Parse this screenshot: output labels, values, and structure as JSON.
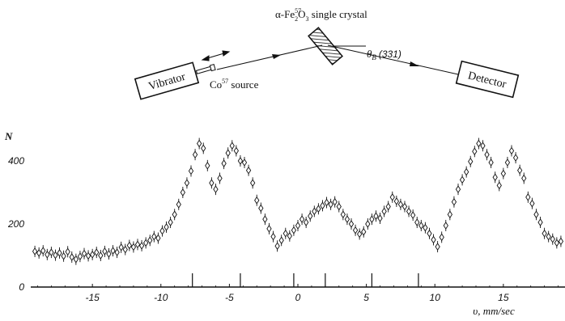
{
  "apparatus": {
    "crystal_label_prefix": "α-Fe",
    "crystal_label_sub": "2",
    "crystal_label_sup": "57",
    "crystal_label_mid": "O",
    "crystal_label_sub2": "3",
    "crystal_label_suffix": " single crystal",
    "bragg_symbol": "θ",
    "bragg_sub": "B",
    "bragg_reflection": "(331)",
    "vibrator_label": "Vibrator",
    "source_label_prefix": "Co",
    "source_label_sup": "57",
    "source_label_suffix": " source",
    "detector_label": "Detector"
  },
  "chart_data": {
    "type": "scatter",
    "marker": "open-diamond-with-error-bars",
    "xlabel": "υ, mm/sec",
    "ylabel": "N",
    "xlim": [
      -19.5,
      19.5
    ],
    "ylim": [
      0,
      500
    ],
    "xticks": [
      -15,
      -10,
      -5,
      0,
      5,
      10,
      15
    ],
    "yticks": [
      0,
      200,
      400
    ],
    "line_markers_x": [
      -7.7,
      -4.2,
      -0.3,
      2.0,
      5.4,
      8.8
    ],
    "points": [
      [
        -19.2,
        113
      ],
      [
        -18.9,
        108
      ],
      [
        -18.6,
        115
      ],
      [
        -18.3,
        103
      ],
      [
        -18.0,
        110
      ],
      [
        -17.7,
        101
      ],
      [
        -17.4,
        108
      ],
      [
        -17.1,
        98
      ],
      [
        -16.8,
        112
      ],
      [
        -16.5,
        95
      ],
      [
        -16.2,
        88
      ],
      [
        -15.9,
        97
      ],
      [
        -15.6,
        106
      ],
      [
        -15.3,
        99
      ],
      [
        -15.0,
        103
      ],
      [
        -14.7,
        110
      ],
      [
        -14.4,
        100
      ],
      [
        -14.1,
        113
      ],
      [
        -13.8,
        105
      ],
      [
        -13.5,
        115
      ],
      [
        -13.2,
        110
      ],
      [
        -12.9,
        126
      ],
      [
        -12.6,
        119
      ],
      [
        -12.3,
        132
      ],
      [
        -12.0,
        127
      ],
      [
        -11.7,
        135
      ],
      [
        -11.4,
        131
      ],
      [
        -11.1,
        140
      ],
      [
        -10.8,
        148
      ],
      [
        -10.5,
        160
      ],
      [
        -10.2,
        155
      ],
      [
        -9.9,
        178
      ],
      [
        -9.6,
        190
      ],
      [
        -9.3,
        205
      ],
      [
        -9.0,
        230
      ],
      [
        -8.7,
        262
      ],
      [
        -8.4,
        300
      ],
      [
        -8.1,
        330
      ],
      [
        -7.8,
        368
      ],
      [
        -7.5,
        420
      ],
      [
        -7.2,
        455
      ],
      [
        -6.9,
        440
      ],
      [
        -6.6,
        385
      ],
      [
        -6.3,
        330
      ],
      [
        -6.0,
        310
      ],
      [
        -5.7,
        345
      ],
      [
        -5.4,
        392
      ],
      [
        -5.1,
        425
      ],
      [
        -4.8,
        448
      ],
      [
        -4.5,
        432
      ],
      [
        -4.2,
        400
      ],
      [
        -3.9,
        395
      ],
      [
        -3.6,
        370
      ],
      [
        -3.3,
        330
      ],
      [
        -3.0,
        275
      ],
      [
        -2.7,
        250
      ],
      [
        -2.4,
        215
      ],
      [
        -2.1,
        185
      ],
      [
        -1.8,
        160
      ],
      [
        -1.5,
        130
      ],
      [
        -1.2,
        148
      ],
      [
        -0.9,
        170
      ],
      [
        -0.6,
        162
      ],
      [
        -0.3,
        180
      ],
      [
        0.0,
        195
      ],
      [
        0.3,
        215
      ],
      [
        0.6,
        205
      ],
      [
        0.9,
        225
      ],
      [
        1.2,
        240
      ],
      [
        1.5,
        248
      ],
      [
        1.8,
        258
      ],
      [
        2.1,
        268
      ],
      [
        2.4,
        262
      ],
      [
        2.7,
        270
      ],
      [
        3.0,
        255
      ],
      [
        3.3,
        230
      ],
      [
        3.6,
        215
      ],
      [
        3.9,
        200
      ],
      [
        4.2,
        180
      ],
      [
        4.5,
        168
      ],
      [
        4.8,
        175
      ],
      [
        5.1,
        200
      ],
      [
        5.4,
        215
      ],
      [
        5.7,
        225
      ],
      [
        6.0,
        218
      ],
      [
        6.3,
        240
      ],
      [
        6.6,
        255
      ],
      [
        6.9,
        285
      ],
      [
        7.2,
        272
      ],
      [
        7.5,
        262
      ],
      [
        7.8,
        255
      ],
      [
        8.1,
        240
      ],
      [
        8.4,
        228
      ],
      [
        8.7,
        205
      ],
      [
        9.0,
        195
      ],
      [
        9.3,
        188
      ],
      [
        9.6,
        170
      ],
      [
        9.9,
        150
      ],
      [
        10.2,
        128
      ],
      [
        10.5,
        158
      ],
      [
        10.8,
        195
      ],
      [
        11.1,
        230
      ],
      [
        11.4,
        270
      ],
      [
        11.7,
        310
      ],
      [
        12.0,
        340
      ],
      [
        12.3,
        365
      ],
      [
        12.6,
        398
      ],
      [
        12.9,
        430
      ],
      [
        13.2,
        455
      ],
      [
        13.5,
        448
      ],
      [
        13.8,
        420
      ],
      [
        14.1,
        395
      ],
      [
        14.4,
        348
      ],
      [
        14.7,
        322
      ],
      [
        15.0,
        360
      ],
      [
        15.3,
        395
      ],
      [
        15.6,
        432
      ],
      [
        15.9,
        410
      ],
      [
        16.2,
        370
      ],
      [
        16.5,
        345
      ],
      [
        16.8,
        285
      ],
      [
        17.1,
        265
      ],
      [
        17.4,
        230
      ],
      [
        17.7,
        205
      ],
      [
        18.0,
        170
      ],
      [
        18.3,
        160
      ],
      [
        18.6,
        152
      ],
      [
        18.9,
        140
      ],
      [
        19.2,
        145
      ]
    ]
  }
}
